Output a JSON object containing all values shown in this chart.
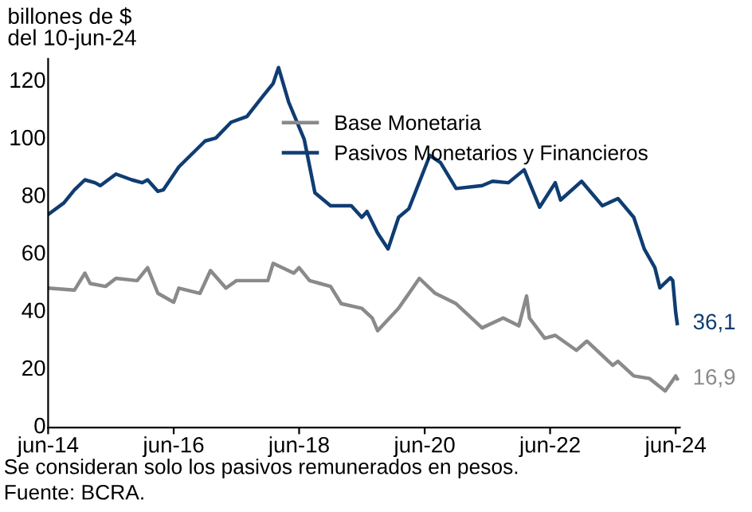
{
  "chart_data": {
    "type": "line",
    "ylabel": "billones de $\ndel 10-jun-24",
    "xlim": [
      "2014-06-01",
      "2024-06-25"
    ],
    "ylim": [
      0,
      128
    ],
    "yticks": [
      0,
      20,
      40,
      60,
      80,
      100,
      120
    ],
    "xticks": [
      {
        "value": "2014-06-01",
        "label": "jun-14"
      },
      {
        "value": "2016-06-01",
        "label": "jun-16"
      },
      {
        "value": "2018-06-01",
        "label": "jun-18"
      },
      {
        "value": "2020-06-01",
        "label": "jun-20"
      },
      {
        "value": "2022-06-01",
        "label": "jun-22"
      },
      {
        "value": "2024-06-01",
        "label": "jun-24"
      }
    ],
    "grid": false,
    "legend": "top right",
    "marker": "none",
    "line_style": "solid",
    "series": [
      {
        "name": "Base Monetaria",
        "color": "#8a8a8a",
        "x": [
          "2014-06-01",
          "2014-11-01",
          "2015-01-01",
          "2015-02-01",
          "2015-05-01",
          "2015-07-01",
          "2015-11-01",
          "2016-01-01",
          "2016-03-01",
          "2016-06-01",
          "2016-07-01",
          "2016-11-01",
          "2017-01-01",
          "2017-04-01",
          "2017-06-01",
          "2017-12-01",
          "2018-01-01",
          "2018-05-01",
          "2018-06-01",
          "2018-08-01",
          "2018-10-01",
          "2018-12-01",
          "2019-02-01",
          "2019-06-01",
          "2019-08-01",
          "2019-09-01",
          "2020-01-01",
          "2020-05-01",
          "2020-08-01",
          "2020-12-01",
          "2021-05-01",
          "2021-09-01",
          "2021-12-01",
          "2022-01-15",
          "2022-02-01",
          "2022-05-01",
          "2022-07-01",
          "2022-11-01",
          "2023-01-01",
          "2023-06-01",
          "2023-07-01",
          "2023-10-01",
          "2024-01-01",
          "2024-04-01",
          "2024-05-15",
          "2024-06-01",
          "2024-06-10"
        ],
        "values": [
          48.4,
          47.7,
          53.6,
          50,
          49,
          51.8,
          51,
          55.5,
          46.6,
          43.5,
          48.4,
          46.6,
          54.5,
          48.4,
          51,
          51,
          57,
          53.6,
          55.5,
          51,
          50,
          49,
          43,
          41.4,
          38,
          33.6,
          41.4,
          51.8,
          46.6,
          43,
          34.6,
          38,
          35.3,
          45.7,
          38,
          31,
          32,
          26.8,
          30,
          21.6,
          23,
          17.9,
          17,
          12.7,
          16.4,
          17.9,
          16.9
        ]
      },
      {
        "name": "Pasivos Monetarios y Financieros",
        "color": "#0f3d72",
        "x": [
          "2014-06-01",
          "2014-09-01",
          "2014-11-01",
          "2015-01-01",
          "2015-03-01",
          "2015-04-01",
          "2015-07-01",
          "2015-10-01",
          "2015-12-01",
          "2016-01-01",
          "2016-03-01",
          "2016-04-01",
          "2016-07-01",
          "2016-12-01",
          "2017-02-01",
          "2017-05-01",
          "2017-08-01",
          "2017-11-01",
          "2018-01-01",
          "2018-02-01",
          "2018-04-01",
          "2018-07-01",
          "2018-09-01",
          "2018-12-01",
          "2019-04-01",
          "2019-06-01",
          "2019-07-01",
          "2019-09-01",
          "2019-11-01",
          "2020-01-01",
          "2020-03-01",
          "2020-07-01",
          "2020-09-01",
          "2020-12-01",
          "2021-05-01",
          "2021-07-01",
          "2021-10-01",
          "2022-01-01",
          "2022-04-01",
          "2022-07-01",
          "2022-08-01",
          "2022-12-01",
          "2023-04-01",
          "2023-07-01",
          "2023-10-01",
          "2023-12-01",
          "2024-02-01",
          "2024-03-01",
          "2024-05-01",
          "2024-05-15",
          "2024-06-01",
          "2024-06-10"
        ],
        "values": [
          74,
          78,
          82.5,
          86,
          85,
          84,
          88,
          86,
          85,
          86,
          82,
          82.5,
          90.5,
          99.5,
          100.5,
          106,
          108,
          115,
          119.5,
          125,
          113,
          100,
          81.5,
          77,
          77,
          73,
          75,
          67.5,
          62,
          73,
          76,
          94.5,
          92,
          83,
          84,
          85.5,
          85,
          89.5,
          76.5,
          85,
          79,
          85.5,
          77,
          79.5,
          73,
          62,
          55.5,
          48.5,
          52,
          51,
          40,
          36.1
        ]
      }
    ],
    "annotations": [
      {
        "text": "36,1",
        "x": "2024-06-10",
        "y": 36.1
      },
      {
        "text": "16,9",
        "x": "2024-06-10",
        "y": 16.9
      },
      "Se consideran solo los pasivos remunerados en pesos.",
      "Fuente: BCRA."
    ]
  }
}
